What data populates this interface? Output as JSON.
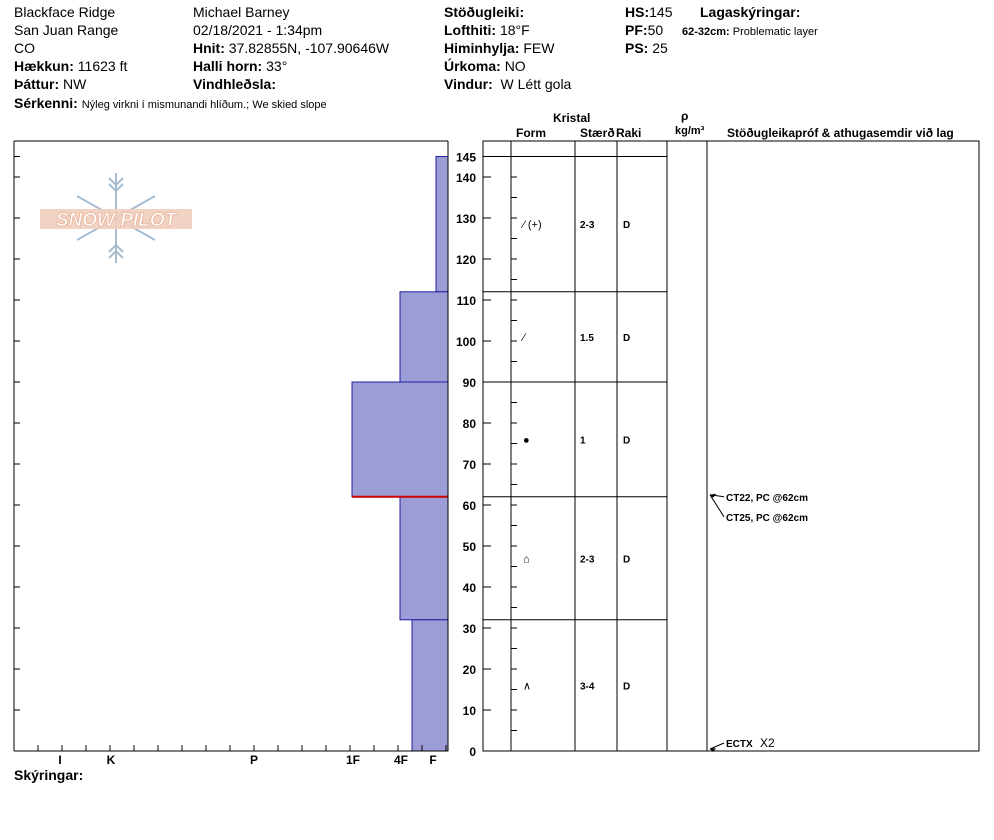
{
  "header": {
    "location": "Blackface Ridge",
    "range": "San Juan Range",
    "state": "CO",
    "elevation_label": "Hækkun:",
    "elevation_value": "11623 ft",
    "aspect_label": "Þáttur:",
    "aspect_value": "NW",
    "observer": "Michael Barney",
    "datetime": "02/18/2021 - 1:34pm",
    "coords_label": "Hnit:",
    "coords_value": "37.82855N, -107.90646W",
    "slope_label": "Halli horn:",
    "slope_value": "33°",
    "wind_loading_label": "Vindhleðsla:",
    "stability_label": "Stöðugleiki:",
    "air_temp_label": "Lofthiti:",
    "air_temp_value": "18°F",
    "sky_label": "Himinhylja:",
    "sky_value": "FEW",
    "precip_label": "Úrkoma:",
    "precip_value": "NO",
    "wind_label": "Vindur:",
    "wind_value": "W Létt gola",
    "hs_label": "HS:",
    "hs_value": "145",
    "pf_label": "PF:",
    "pf_value": "50",
    "ps_label": "PS:",
    "ps_value": "25",
    "layer_notes_label": "Lagaskýringar:",
    "layer_note_range": "62-32cm:",
    "layer_note_text": "Problematic layer",
    "features_label": "Sérkenni:",
    "features_value": "Nýleg virkni í mismunandi hlíðum.; We skied slope"
  },
  "logo": {
    "text": "SNOW PILOT",
    "color": "#e8b49a"
  },
  "columns": {
    "crystal": "Kristal",
    "form": "Form",
    "size": "Stærð",
    "moisture": "Raki",
    "density_symbol": "ρ",
    "density_unit": "kg/m³",
    "tests": "Stöðugleikapróf & athugasemdir við lag"
  },
  "hardness_axis": [
    "I",
    "K",
    "P",
    "1F",
    "4F",
    "F"
  ],
  "footer": {
    "notes_label": "Skýringar:"
  },
  "colors": {
    "hardness_fill": "#9c9cd6",
    "hardness_stroke": "#2020a0",
    "problem_line": "#cc0000"
  },
  "chart_data": {
    "type": "snow-profile",
    "depth_ticks": [
      0,
      10,
      20,
      30,
      40,
      50,
      60,
      70,
      80,
      90,
      100,
      110,
      120,
      130,
      140,
      145
    ],
    "depth_range": [
      0,
      145
    ],
    "layers": [
      {
        "top": 145,
        "bottom": 112,
        "hardness": 0.25,
        "form": "⁄ (+)",
        "size": "2-3",
        "moisture": "D"
      },
      {
        "top": 112,
        "bottom": 90,
        "hardness": 1.0,
        "form": "⁄",
        "size": "1.5",
        "moisture": "D"
      },
      {
        "top": 90,
        "bottom": 62,
        "hardness": 2.0,
        "form": "●",
        "size": "1",
        "moisture": "D"
      },
      {
        "top": 62,
        "bottom": 32,
        "hardness": 1.0,
        "form": "⌂",
        "size": "2-3",
        "moisture": "D"
      },
      {
        "top": 32,
        "bottom": 0,
        "hardness": 0.75,
        "form": "∧",
        "size": "3-4",
        "moisture": "D"
      }
    ],
    "problem_layer_depth": 62,
    "tests": [
      {
        "depth": 62,
        "label": "CT22, PC @62cm",
        "extra": ""
      },
      {
        "depth": 62,
        "label": "CT25, PC @62cm",
        "extra": ""
      },
      {
        "depth": 0,
        "label": "ECTX",
        "extra": "X2"
      }
    ]
  }
}
